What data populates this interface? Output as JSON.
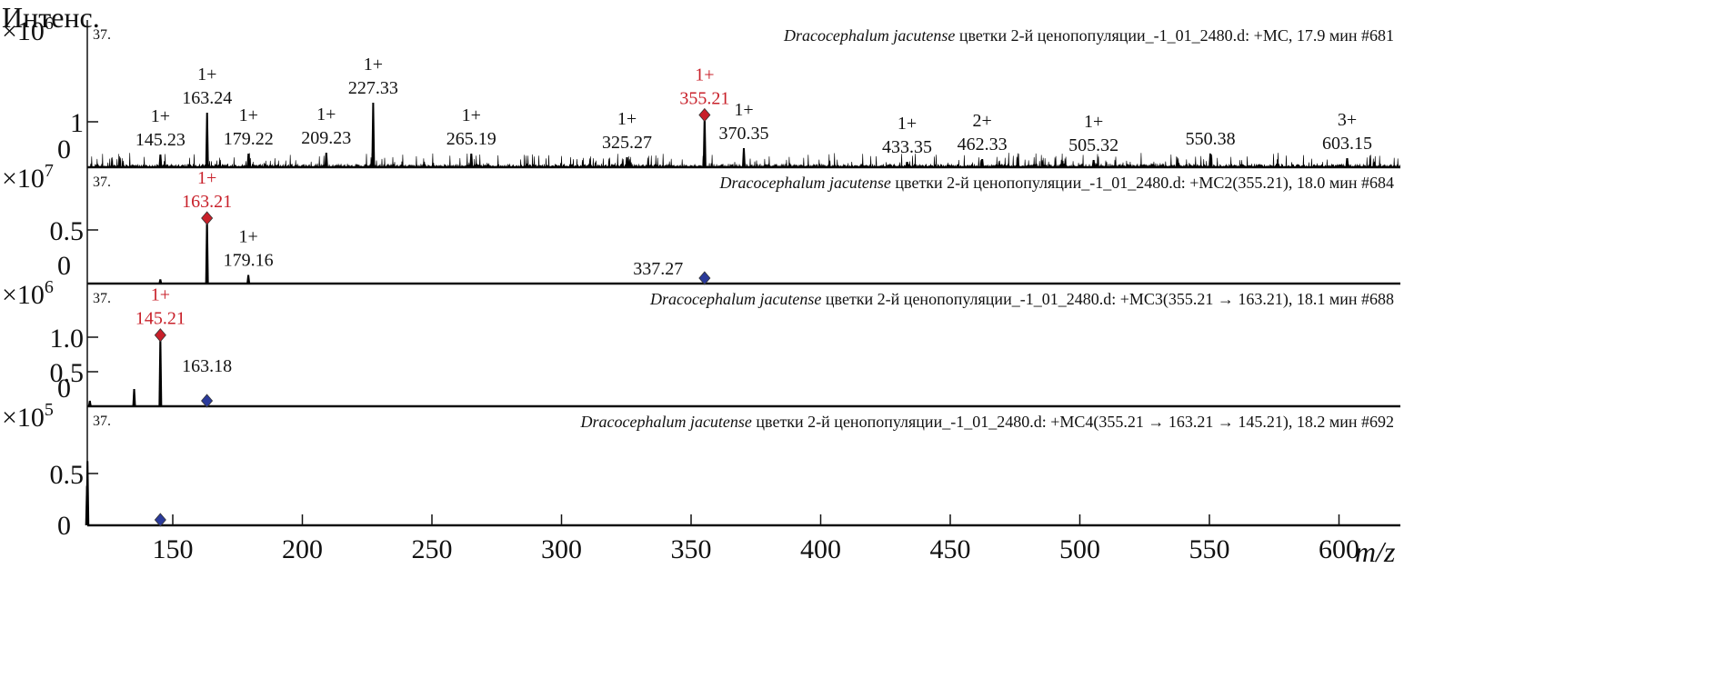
{
  "chart_data": {
    "type": "bar",
    "title": "",
    "ylabel": "Интенс.",
    "xlabel": "m/z",
    "xlim": [
      117,
      624
    ],
    "xticks": [
      150,
      200,
      250,
      300,
      350,
      400,
      450,
      500,
      550,
      600
    ],
    "colors": {
      "axis": "#111111",
      "peak": "#000000",
      "selected": "#c8202a",
      "precursor": "#2a3a9a",
      "selected_text": "#c8202a"
    },
    "panels": [
      {
        "index_label": "37.",
        "multiplier": "×10",
        "exponent": "6",
        "title_species": "Dracocephalum jacutense",
        "title_rest": " цветки 2-й ценопопуляции_-1_01_2480.d: +MC, 17.9 мин #681",
        "ylim": [
          0,
          1.6
        ],
        "yticks": [
          {
            "value": 0,
            "label": "0"
          },
          {
            "value": 1,
            "label": "1"
          }
        ],
        "noise": true,
        "peaks": [
          {
            "mz": 145.23,
            "intensity": 0.28,
            "label": "145.23",
            "charge": "1+"
          },
          {
            "mz": 163.24,
            "intensity": 1.2,
            "label": "163.24",
            "charge": "1+"
          },
          {
            "mz": 179.22,
            "intensity": 0.3,
            "label": "179.22",
            "charge": "1+"
          },
          {
            "mz": 209.23,
            "intensity": 0.32,
            "label": "209.23",
            "charge": "1+"
          },
          {
            "mz": 227.33,
            "intensity": 1.42,
            "label": "227.33",
            "charge": "1+"
          },
          {
            "mz": 265.19,
            "intensity": 0.3,
            "label": "265.19",
            "charge": "1+"
          },
          {
            "mz": 325.27,
            "intensity": 0.22,
            "label": "325.27",
            "charge": "1+"
          },
          {
            "mz": 355.21,
            "intensity": 1.15,
            "label": "355.21",
            "charge": "1+",
            "selected": true
          },
          {
            "mz": 370.35,
            "intensity": 0.42,
            "label": "370.35",
            "charge": "1+"
          },
          {
            "mz": 433.35,
            "intensity": 0.12,
            "label": "433.35",
            "charge": "1+"
          },
          {
            "mz": 462.33,
            "intensity": 0.18,
            "label": "462.33",
            "charge": "2+"
          },
          {
            "mz": 505.32,
            "intensity": 0.16,
            "label": "505.32",
            "charge": "1+"
          },
          {
            "mz": 550.38,
            "intensity": 0.3,
            "label": "550.38",
            "charge": ""
          },
          {
            "mz": 603.15,
            "intensity": 0.2,
            "label": "603.15",
            "charge": "3+"
          }
        ]
      },
      {
        "index_label": "37.",
        "multiplier": "×10",
        "exponent": "7",
        "title_species": "Dracocephalum jacutense",
        "title_rest": " цветки 2-й ценопопуляции_-1_01_2480.d: +MC2(355.21), 18.0 мин #684",
        "ylim": [
          0,
          1.05
        ],
        "yticks": [
          {
            "value": 0,
            "label": "0"
          },
          {
            "value": 0.5,
            "label": "0.5"
          }
        ],
        "precursor_mz": 355.21,
        "peaks": [
          {
            "mz": 145.2,
            "intensity": 0.04
          },
          {
            "mz": 163.21,
            "intensity": 0.61,
            "label": "163.21",
            "charge": "1+",
            "selected": true
          },
          {
            "mz": 179.16,
            "intensity": 0.08,
            "label": "179.16",
            "charge": "1+"
          }
        ],
        "free_labels": [
          {
            "mz": 337.27,
            "label": "337.27"
          }
        ]
      },
      {
        "index_label": "37.",
        "multiplier": "×10",
        "exponent": "6",
        "title_species": "Dracocephalum jacutense",
        "title_rest": " цветки 2-й ценопопуляции_-1_01_2480.d: +MC3(355.21 → 163.21), 18.1 мин #688",
        "ylim": [
          0,
          1.7
        ],
        "yticks": [
          {
            "value": 0,
            "label": "0"
          },
          {
            "value": 0.5,
            "label": "0.5"
          },
          {
            "value": 1.0,
            "label": "1.0"
          }
        ],
        "precursor_mz": 163.18,
        "peaks": [
          {
            "mz": 118.0,
            "intensity": 0.08
          },
          {
            "mz": 135.1,
            "intensity": 0.25
          },
          {
            "mz": 145.21,
            "intensity": 1.03,
            "label": "145.21",
            "charge": "1+",
            "selected": true
          }
        ],
        "free_labels": [
          {
            "mz": 163.18,
            "label": "163.18"
          }
        ]
      },
      {
        "index_label": "37.",
        "multiplier": "×10",
        "exponent": "5",
        "title_species": "Dracocephalum jacutense",
        "title_rest": " цветки 2-й ценопопуляции_-1_01_2480.d: +MC4(355.21 → 163.21 → 145.21), 18.2 мин #692",
        "ylim": [
          0,
          1.1
        ],
        "yticks": [
          {
            "value": 0,
            "label": "0"
          },
          {
            "value": 0.5,
            "label": "0.5"
          }
        ],
        "precursor_mz": 145.21,
        "peaks": [
          {
            "mz": 117.1,
            "intensity": 0.62
          },
          {
            "mz": 116.9,
            "intensity": 0.38
          }
        ]
      }
    ]
  }
}
